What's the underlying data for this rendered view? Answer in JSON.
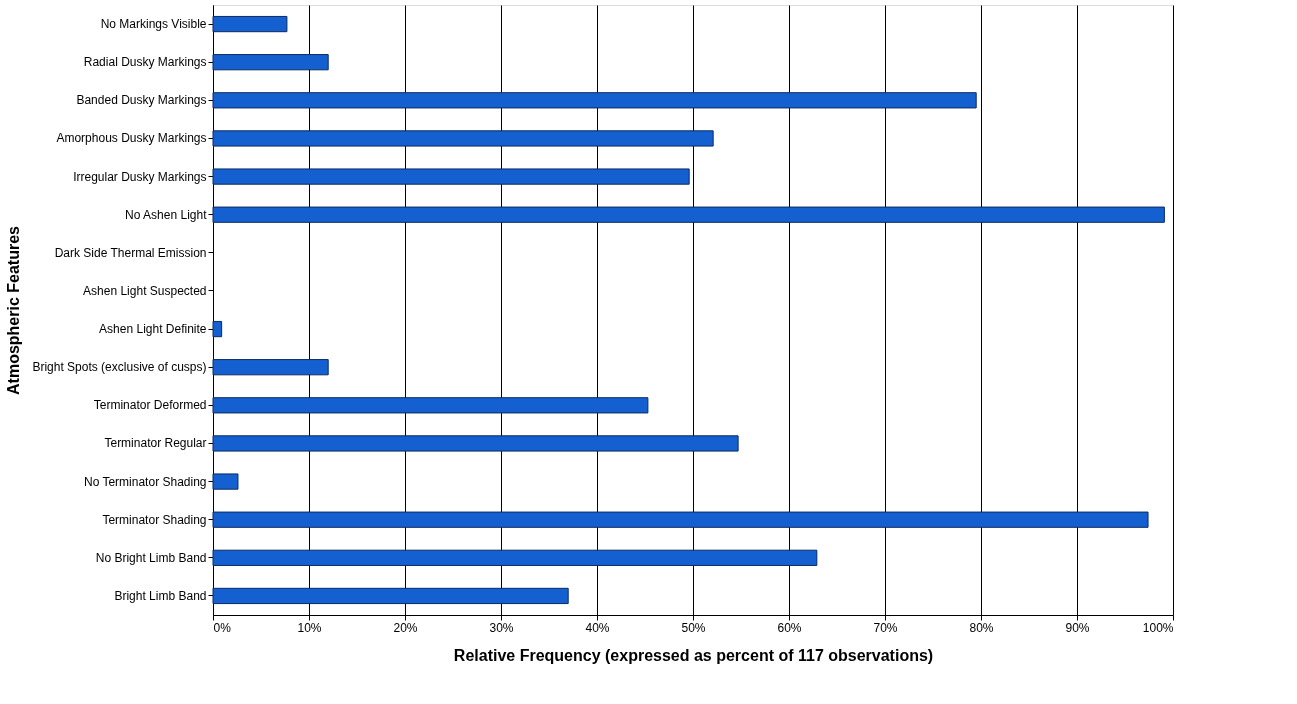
{
  "chart_data": {
    "type": "bar",
    "orientation": "horizontal",
    "ylabel": "Atmospheric Features",
    "xlabel": "Relative Frequency (expressed as percent of 117 observations)",
    "categories": [
      "No Markings Visible",
      "Radial Dusky Markings",
      "Banded Dusky Markings",
      "Amorphous Dusky Markings",
      "Irregular Dusky Markings",
      "No Ashen Light",
      "Dark Side Thermal Emission",
      "Ashen Light Suspected",
      "Ashen Light Definite",
      "Bright Spots (exclusive of cusps)",
      "Terminator Deformed",
      "Terminator Regular",
      "No Terminator Shading",
      "Terminator Shading",
      "No Bright Limb Band",
      "Bright Limb Band"
    ],
    "values": [
      7.7,
      12.0,
      79.5,
      52.1,
      49.6,
      99.1,
      0,
      0,
      0.9,
      12.0,
      45.3,
      54.7,
      2.6,
      97.4,
      62.9,
      37.0
    ],
    "color": "#1560d0",
    "xlim": [
      0,
      100
    ],
    "xticks": [
      {
        "value": 0,
        "label": "0%"
      },
      {
        "value": 10,
        "label": "10%"
      },
      {
        "value": 20,
        "label": "20%"
      },
      {
        "value": 30,
        "label": "30%"
      },
      {
        "value": 40,
        "label": "40%"
      },
      {
        "value": 50,
        "label": "50%"
      },
      {
        "value": 60,
        "label": "60%"
      },
      {
        "value": 70,
        "label": "70%"
      },
      {
        "value": 80,
        "label": "80%"
      },
      {
        "value": 90,
        "label": "90%"
      },
      {
        "value": 100,
        "label": "100%"
      }
    ],
    "grid": "x"
  }
}
